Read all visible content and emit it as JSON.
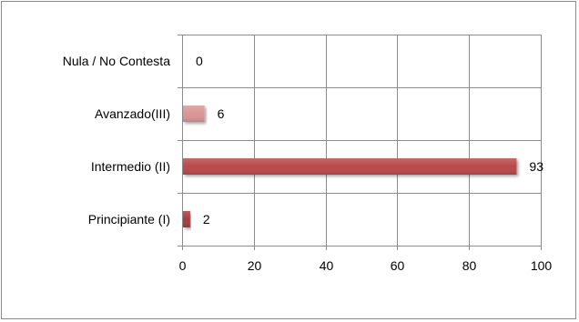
{
  "chart_data": {
    "type": "bar",
    "orientation": "horizontal",
    "categories": [
      "Nula / No Contesta",
      "Avanzado(III)",
      "Intermedio (II)",
      "Principiante (I)"
    ],
    "values": [
      0,
      6,
      93,
      2
    ],
    "xlim": [
      0,
      100
    ],
    "x_ticks": [
      0,
      20,
      40,
      60,
      80,
      100
    ],
    "grid": true,
    "legend": "none",
    "colors": {
      "Nula / No Contesta": "#c0504d",
      "Avanzado(III)": "#d99594",
      "Intermedio (II)": "#b84a48",
      "Principiante (I)": "#a83c3a"
    }
  }
}
